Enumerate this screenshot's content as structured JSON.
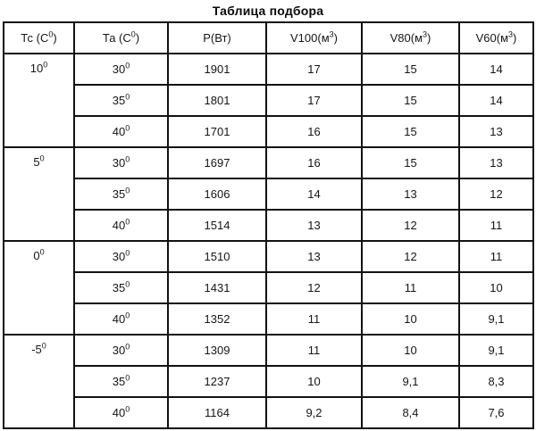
{
  "title": "Таблица подбора",
  "table": {
    "sup_zero": "0",
    "headers": [
      {
        "pre": "Тс (С",
        "sup": "0",
        "post": ")"
      },
      {
        "pre": "Та (С",
        "sup": "0",
        "post": ")"
      },
      {
        "pre": "Р(Вт)",
        "sup": "",
        "post": ""
      },
      {
        "pre": "V100(м",
        "sup": "3",
        "post": ")"
      },
      {
        "pre": "V80(м",
        "sup": "3",
        "post": ")"
      },
      {
        "pre": "V60(м",
        "sup": "3",
        "post": ")"
      }
    ],
    "groups": [
      {
        "tc": "10",
        "rows": [
          {
            "ta": "30",
            "p": "1901",
            "v100": "17",
            "v80": "15",
            "v60": "14"
          },
          {
            "ta": "35",
            "p": "1801",
            "v100": "17",
            "v80": "15",
            "v60": "14"
          },
          {
            "ta": "40",
            "p": "1701",
            "v100": "16",
            "v80": "15",
            "v60": "13"
          }
        ]
      },
      {
        "tc": "5",
        "rows": [
          {
            "ta": "30",
            "p": "1697",
            "v100": "16",
            "v80": "15",
            "v60": "13"
          },
          {
            "ta": "35",
            "p": "1606",
            "v100": "14",
            "v80": "13",
            "v60": "12"
          },
          {
            "ta": "40",
            "p": "1514",
            "v100": "13",
            "v80": "12",
            "v60": "11"
          }
        ]
      },
      {
        "tc": "0",
        "rows": [
          {
            "ta": "30",
            "p": "1510",
            "v100": "13",
            "v80": "12",
            "v60": "11"
          },
          {
            "ta": "35",
            "p": "1431",
            "v100": "12",
            "v80": "11",
            "v60": "10"
          },
          {
            "ta": "40",
            "p": "1352",
            "v100": "11",
            "v80": "10",
            "v60": "9,1"
          }
        ]
      },
      {
        "tc": "-5",
        "rows": [
          {
            "ta": "30",
            "p": "1309",
            "v100": "11",
            "v80": "10",
            "v60": "9,1"
          },
          {
            "ta": "35",
            "p": "1237",
            "v100": "10",
            "v80": "9,1",
            "v60": "8,3"
          },
          {
            "ta": "40",
            "p": "1164",
            "v100": "9,2",
            "v80": "8,4",
            "v60": "7,6"
          }
        ]
      }
    ]
  },
  "chart_data": {
    "type": "table",
    "title": "Таблица подбора",
    "columns": [
      "Тс (С0)",
      "Та (С0)",
      "Р(Вт)",
      "V100(м3)",
      "V80(м3)",
      "V60(м3)"
    ],
    "rows": [
      [
        "10",
        "30",
        "1901",
        "17",
        "15",
        "14"
      ],
      [
        "10",
        "35",
        "1801",
        "17",
        "15",
        "14"
      ],
      [
        "10",
        "40",
        "1701",
        "16",
        "15",
        "13"
      ],
      [
        "5",
        "30",
        "1697",
        "16",
        "15",
        "13"
      ],
      [
        "5",
        "35",
        "1606",
        "14",
        "13",
        "12"
      ],
      [
        "5",
        "40",
        "1514",
        "13",
        "12",
        "11"
      ],
      [
        "0",
        "30",
        "1510",
        "13",
        "12",
        "11"
      ],
      [
        "0",
        "35",
        "1431",
        "12",
        "11",
        "10"
      ],
      [
        "0",
        "40",
        "1352",
        "11",
        "10",
        "9,1"
      ],
      [
        "-5",
        "30",
        "1309",
        "11",
        "10",
        "9,1"
      ],
      [
        "-5",
        "35",
        "1237",
        "10",
        "9,1",
        "8,3"
      ],
      [
        "-5",
        "40",
        "1164",
        "9,2",
        "8,4",
        "7,6"
      ]
    ]
  }
}
